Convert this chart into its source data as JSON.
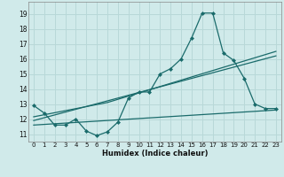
{
  "xlabel": "Humidex (Indice chaleur)",
  "bg_color": "#d0eaea",
  "grid_color": "#b8d8d8",
  "line_color": "#1a6b6b",
  "xlim": [
    -0.5,
    23.5
  ],
  "ylim": [
    10.5,
    19.8
  ],
  "yticks": [
    11,
    12,
    13,
    14,
    15,
    16,
    17,
    18,
    19
  ],
  "xticks": [
    0,
    1,
    2,
    3,
    4,
    5,
    6,
    7,
    8,
    9,
    10,
    11,
    12,
    13,
    14,
    15,
    16,
    17,
    18,
    19,
    20,
    21,
    22,
    23
  ],
  "line1_x": [
    0,
    1,
    2,
    3,
    4,
    5,
    6,
    7,
    8,
    9,
    10,
    11,
    12,
    13,
    14,
    15,
    16,
    17,
    18,
    19,
    20,
    21,
    22,
    23
  ],
  "line1_y": [
    12.9,
    12.4,
    11.6,
    11.6,
    12.0,
    11.2,
    10.9,
    11.15,
    11.8,
    13.4,
    13.8,
    13.8,
    15.0,
    15.35,
    16.0,
    17.4,
    19.05,
    19.05,
    16.4,
    15.9,
    14.7,
    13.0,
    12.7,
    12.7
  ],
  "line2_x": [
    0,
    23
  ],
  "line2_y": [
    11.9,
    16.2
  ],
  "line3_x": [
    0,
    7,
    23
  ],
  "line3_y": [
    12.15,
    13.1,
    16.5
  ],
  "line4_x": [
    0,
    23
  ],
  "line4_y": [
    11.6,
    12.6
  ]
}
